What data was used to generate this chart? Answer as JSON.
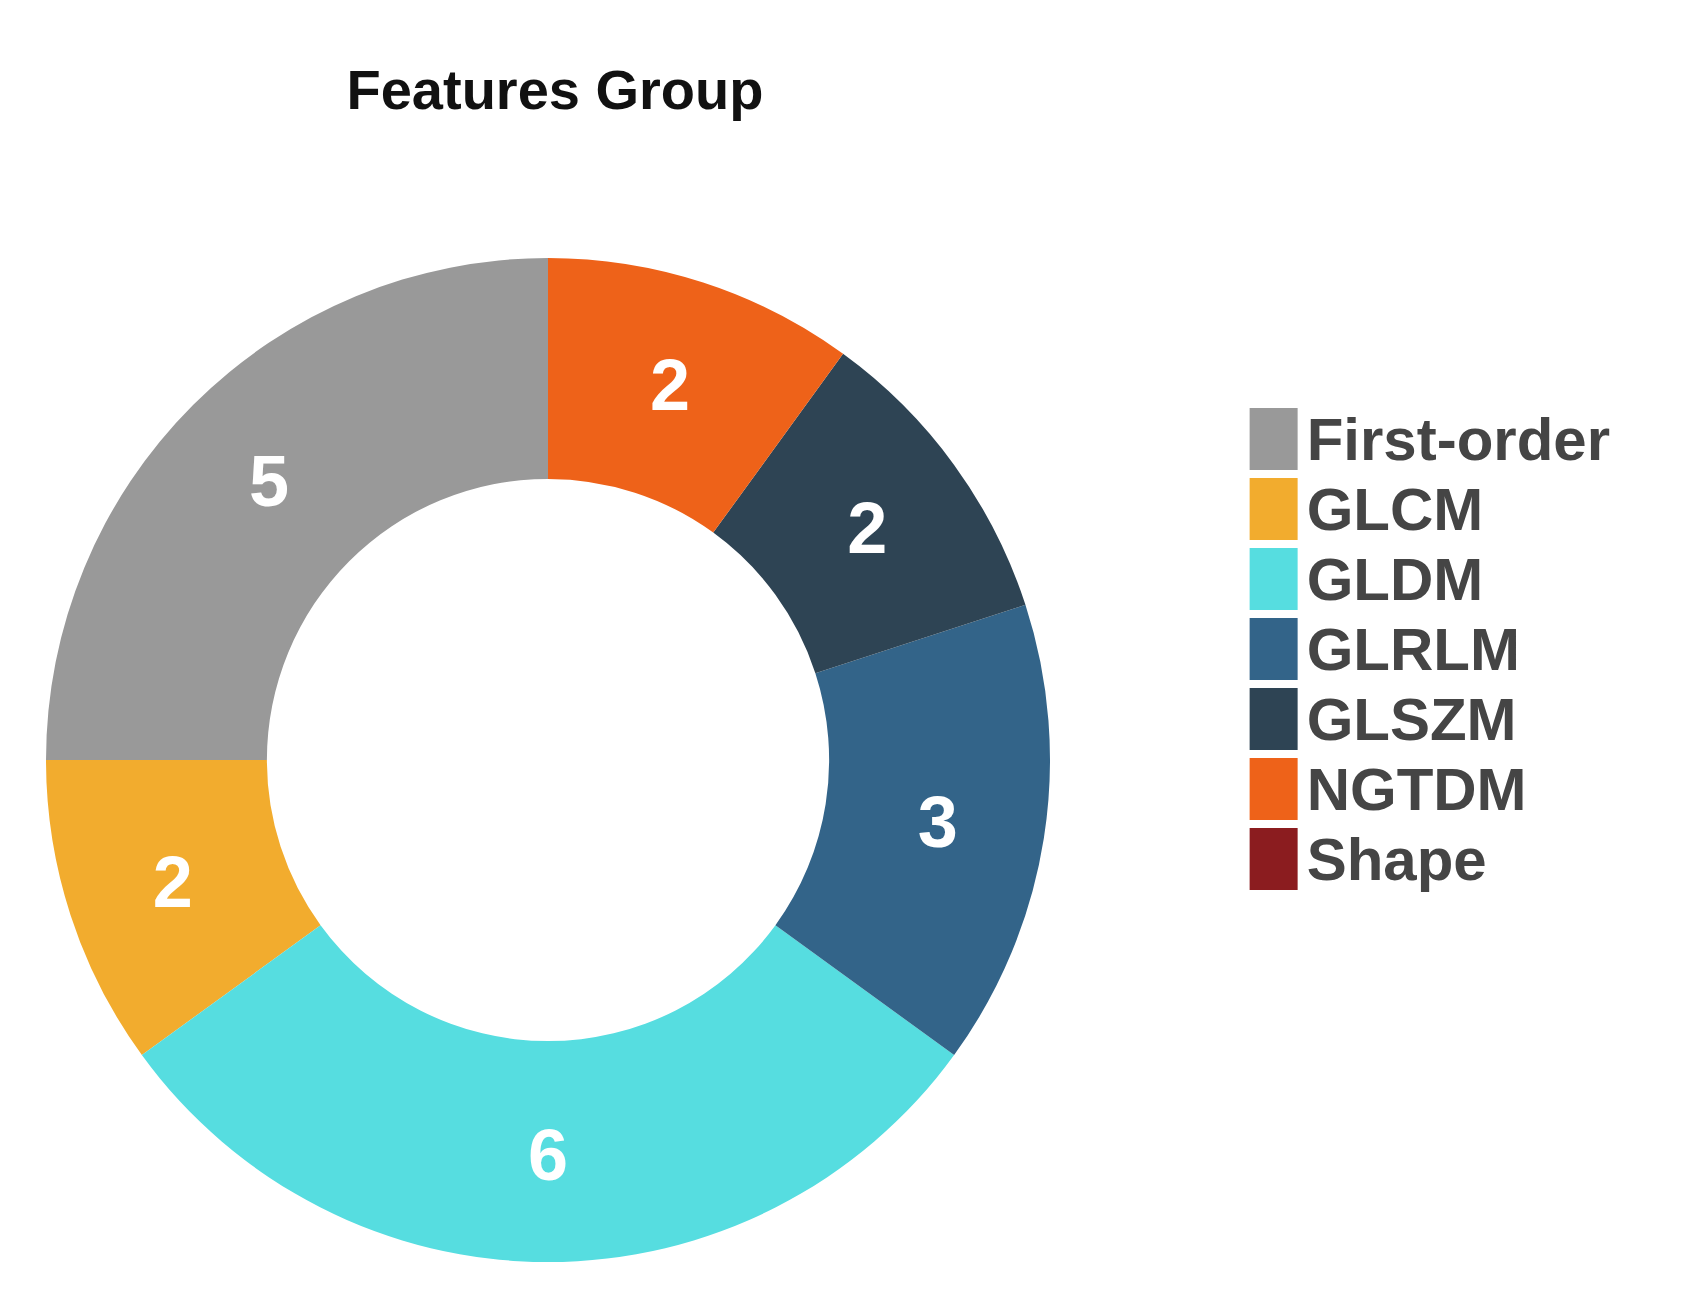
{
  "chart_data": {
    "type": "donut",
    "title": "Features Group",
    "categories": [
      "First-order",
      "GLCM",
      "GLDM",
      "GLRLM",
      "GLSZM",
      "NGTDM",
      "Shape"
    ],
    "values": [
      5,
      2,
      6,
      3,
      2,
      2,
      0
    ],
    "colors": [
      "#999999",
      "#f2ac2e",
      "#56dde0",
      "#336489",
      "#2e4454",
      "#ee6219",
      "#8b1c1f"
    ],
    "data_labels": true,
    "legend": "right"
  }
}
